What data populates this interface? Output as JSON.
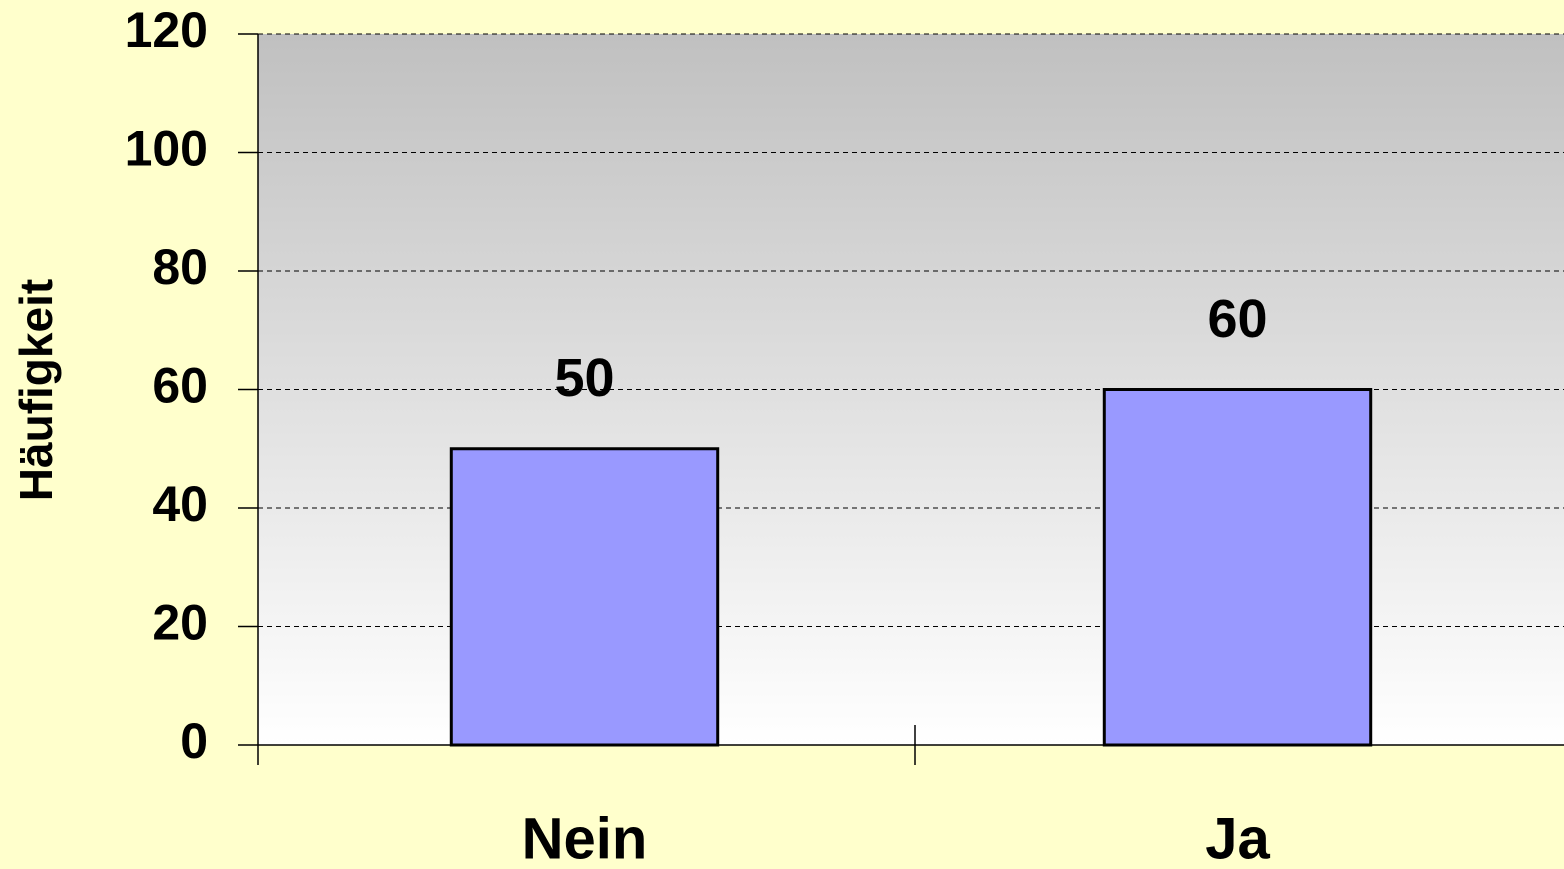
{
  "chart_data": {
    "type": "bar",
    "y_label": "Häufigkeit",
    "categories": [
      "Nein",
      "Ja"
    ],
    "values": [
      50,
      60
    ],
    "color": "#9999ff",
    "ylim": [
      0,
      120
    ],
    "yticks": [
      0,
      20,
      40,
      60,
      80,
      100,
      120
    ],
    "grid": true
  }
}
